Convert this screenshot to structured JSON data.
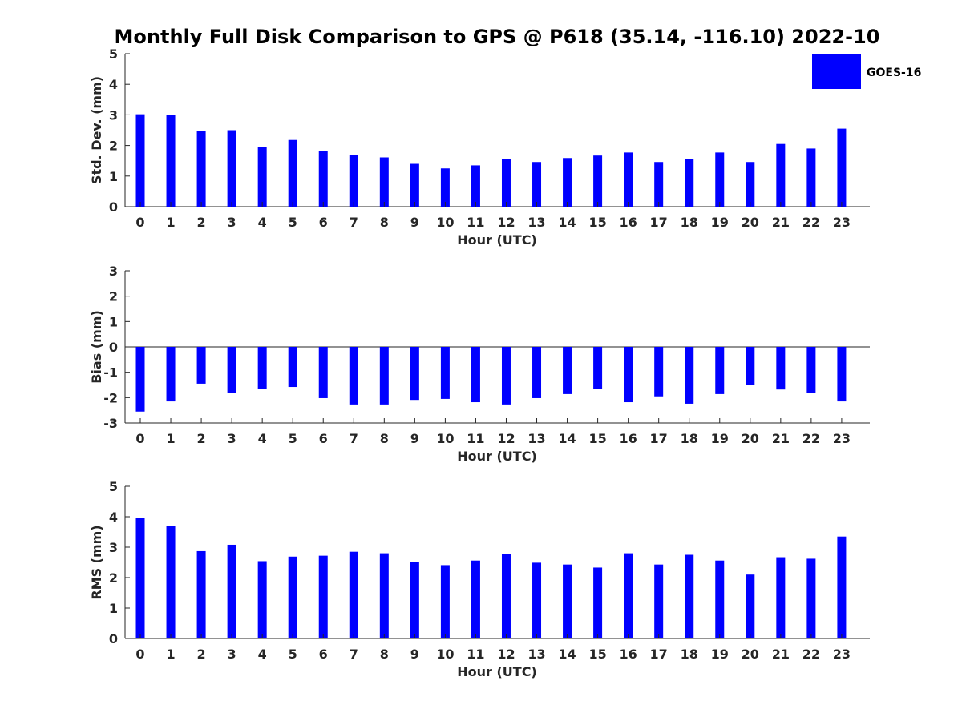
{
  "title": "Monthly Full Disk Comparison to GPS @ P618 (35.14, -116.10) 2022-10",
  "legend": {
    "label": "GOES-16",
    "color": "#0000ff",
    "placement": "top-right"
  },
  "chart_data": [
    {
      "type": "bar",
      "xlabel": "Hour (UTC)",
      "ylabel": "Std. Dev. (mm)",
      "ylim": [
        0,
        5
      ],
      "yticks": [
        0,
        1,
        2,
        3,
        4,
        5
      ],
      "categories": [
        "0",
        "1",
        "2",
        "3",
        "4",
        "5",
        "6",
        "7",
        "8",
        "9",
        "10",
        "11",
        "12",
        "13",
        "14",
        "15",
        "16",
        "17",
        "18",
        "19",
        "20",
        "21",
        "22",
        "23"
      ],
      "series": [
        {
          "name": "GOES-16",
          "color": "#0000ff",
          "values": [
            3.02,
            3.0,
            2.47,
            2.5,
            1.95,
            2.18,
            1.82,
            1.69,
            1.61,
            1.4,
            1.25,
            1.35,
            1.56,
            1.46,
            1.59,
            1.67,
            1.77,
            1.46,
            1.56,
            1.77,
            1.46,
            2.05,
            1.9,
            2.55
          ]
        }
      ]
    },
    {
      "type": "bar",
      "xlabel": "Hour (UTC)",
      "ylabel": "Bias (mm)",
      "ylim": [
        -3,
        3
      ],
      "yticks": [
        -3,
        -2,
        -1,
        0,
        1,
        2,
        3
      ],
      "categories": [
        "0",
        "1",
        "2",
        "3",
        "4",
        "5",
        "6",
        "7",
        "8",
        "9",
        "10",
        "11",
        "12",
        "13",
        "14",
        "15",
        "16",
        "17",
        "18",
        "19",
        "20",
        "21",
        "22",
        "23"
      ],
      "series": [
        {
          "name": "GOES-16",
          "color": "#0000ff",
          "values": [
            -2.55,
            -2.15,
            -1.45,
            -1.8,
            -1.65,
            -1.58,
            -2.02,
            -2.27,
            -2.27,
            -2.09,
            -2.05,
            -2.18,
            -2.27,
            -2.02,
            -1.86,
            -1.65,
            -2.18,
            -1.95,
            -2.24,
            -1.86,
            -1.49,
            -1.68,
            -1.83,
            -2.15
          ]
        }
      ]
    },
    {
      "type": "bar",
      "xlabel": "Hour (UTC)",
      "ylabel": "RMS (mm)",
      "ylim": [
        0,
        5
      ],
      "yticks": [
        0,
        1,
        2,
        3,
        4,
        5
      ],
      "categories": [
        "0",
        "1",
        "2",
        "3",
        "4",
        "5",
        "6",
        "7",
        "8",
        "9",
        "10",
        "11",
        "12",
        "13",
        "14",
        "15",
        "16",
        "17",
        "18",
        "19",
        "20",
        "21",
        "22",
        "23"
      ],
      "series": [
        {
          "name": "GOES-16",
          "color": "#0000ff",
          "values": [
            3.95,
            3.71,
            2.87,
            3.08,
            2.54,
            2.69,
            2.72,
            2.85,
            2.8,
            2.51,
            2.41,
            2.56,
            2.77,
            2.49,
            2.43,
            2.33,
            2.8,
            2.43,
            2.75,
            2.56,
            2.1,
            2.67,
            2.62,
            3.35
          ]
        }
      ]
    }
  ]
}
